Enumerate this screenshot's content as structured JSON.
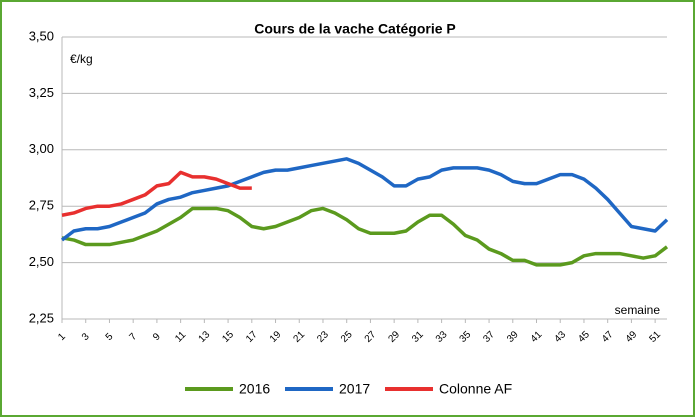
{
  "chart_data": {
    "type": "line",
    "title": "Cours de la vache Catégorie P",
    "y_label": "€/kg",
    "x_label": "semaine",
    "x": [
      1,
      2,
      3,
      4,
      5,
      6,
      7,
      8,
      9,
      10,
      11,
      12,
      13,
      14,
      15,
      16,
      17,
      18,
      19,
      20,
      21,
      22,
      23,
      24,
      25,
      26,
      27,
      28,
      29,
      30,
      31,
      32,
      33,
      34,
      35,
      36,
      37,
      38,
      39,
      40,
      41,
      42,
      43,
      44,
      45,
      46,
      47,
      48,
      49,
      50,
      51,
      52
    ],
    "xlim": [
      1,
      52
    ],
    "xticks": [
      1,
      3,
      5,
      7,
      9,
      11,
      13,
      15,
      17,
      19,
      21,
      23,
      25,
      27,
      29,
      31,
      33,
      35,
      37,
      39,
      41,
      43,
      45,
      47,
      49,
      51
    ],
    "ylim": [
      2.25,
      3.5
    ],
    "yticks": [
      {
        "value": 2.25,
        "label": "2,25"
      },
      {
        "value": 2.5,
        "label": "2,50"
      },
      {
        "value": 2.75,
        "label": "2,75"
      },
      {
        "value": 3.0,
        "label": "3,00"
      },
      {
        "value": 3.25,
        "label": "3,25"
      },
      {
        "value": 3.5,
        "label": "3,50"
      }
    ],
    "grid": true,
    "legend": "bottom",
    "series": [
      {
        "name": "2016",
        "color": "#5b9a1e",
        "values": [
          2.61,
          2.6,
          2.58,
          2.58,
          2.58,
          2.59,
          2.6,
          2.62,
          2.64,
          2.67,
          2.7,
          2.74,
          2.74,
          2.74,
          2.73,
          2.7,
          2.66,
          2.65,
          2.66,
          2.68,
          2.7,
          2.73,
          2.74,
          2.72,
          2.69,
          2.65,
          2.63,
          2.63,
          2.63,
          2.64,
          2.68,
          2.71,
          2.71,
          2.67,
          2.62,
          2.6,
          2.56,
          2.54,
          2.51,
          2.51,
          2.49,
          2.49,
          2.49,
          2.5,
          2.53,
          2.54,
          2.54,
          2.54,
          2.53,
          2.52,
          2.53,
          2.57
        ]
      },
      {
        "name": "2017",
        "color": "#1f67c4",
        "values": [
          2.6,
          2.64,
          2.65,
          2.65,
          2.66,
          2.68,
          2.7,
          2.72,
          2.76,
          2.78,
          2.79,
          2.81,
          2.82,
          2.83,
          2.84,
          2.86,
          2.88,
          2.9,
          2.91,
          2.91,
          2.92,
          2.93,
          2.94,
          2.95,
          2.96,
          2.94,
          2.91,
          2.88,
          2.84,
          2.84,
          2.87,
          2.88,
          2.91,
          2.92,
          2.92,
          2.92,
          2.91,
          2.89,
          2.86,
          2.85,
          2.85,
          2.87,
          2.89,
          2.89,
          2.87,
          2.83,
          2.78,
          2.72,
          2.66,
          2.65,
          2.64,
          2.69
        ]
      },
      {
        "name": "Colonne AF",
        "color": "#e8302f",
        "values": [
          2.71,
          2.72,
          2.74,
          2.75,
          2.75,
          2.76,
          2.78,
          2.8,
          2.84,
          2.85,
          2.9,
          2.88,
          2.88,
          2.87,
          2.85,
          2.83,
          2.83,
          null,
          null,
          null,
          null,
          null,
          null,
          null,
          null,
          null,
          null,
          null,
          null,
          null,
          null,
          null,
          null,
          null,
          null,
          null,
          null,
          null,
          null,
          null,
          null,
          null,
          null,
          null,
          null,
          null,
          null,
          null,
          null,
          null,
          null,
          null
        ]
      }
    ]
  }
}
